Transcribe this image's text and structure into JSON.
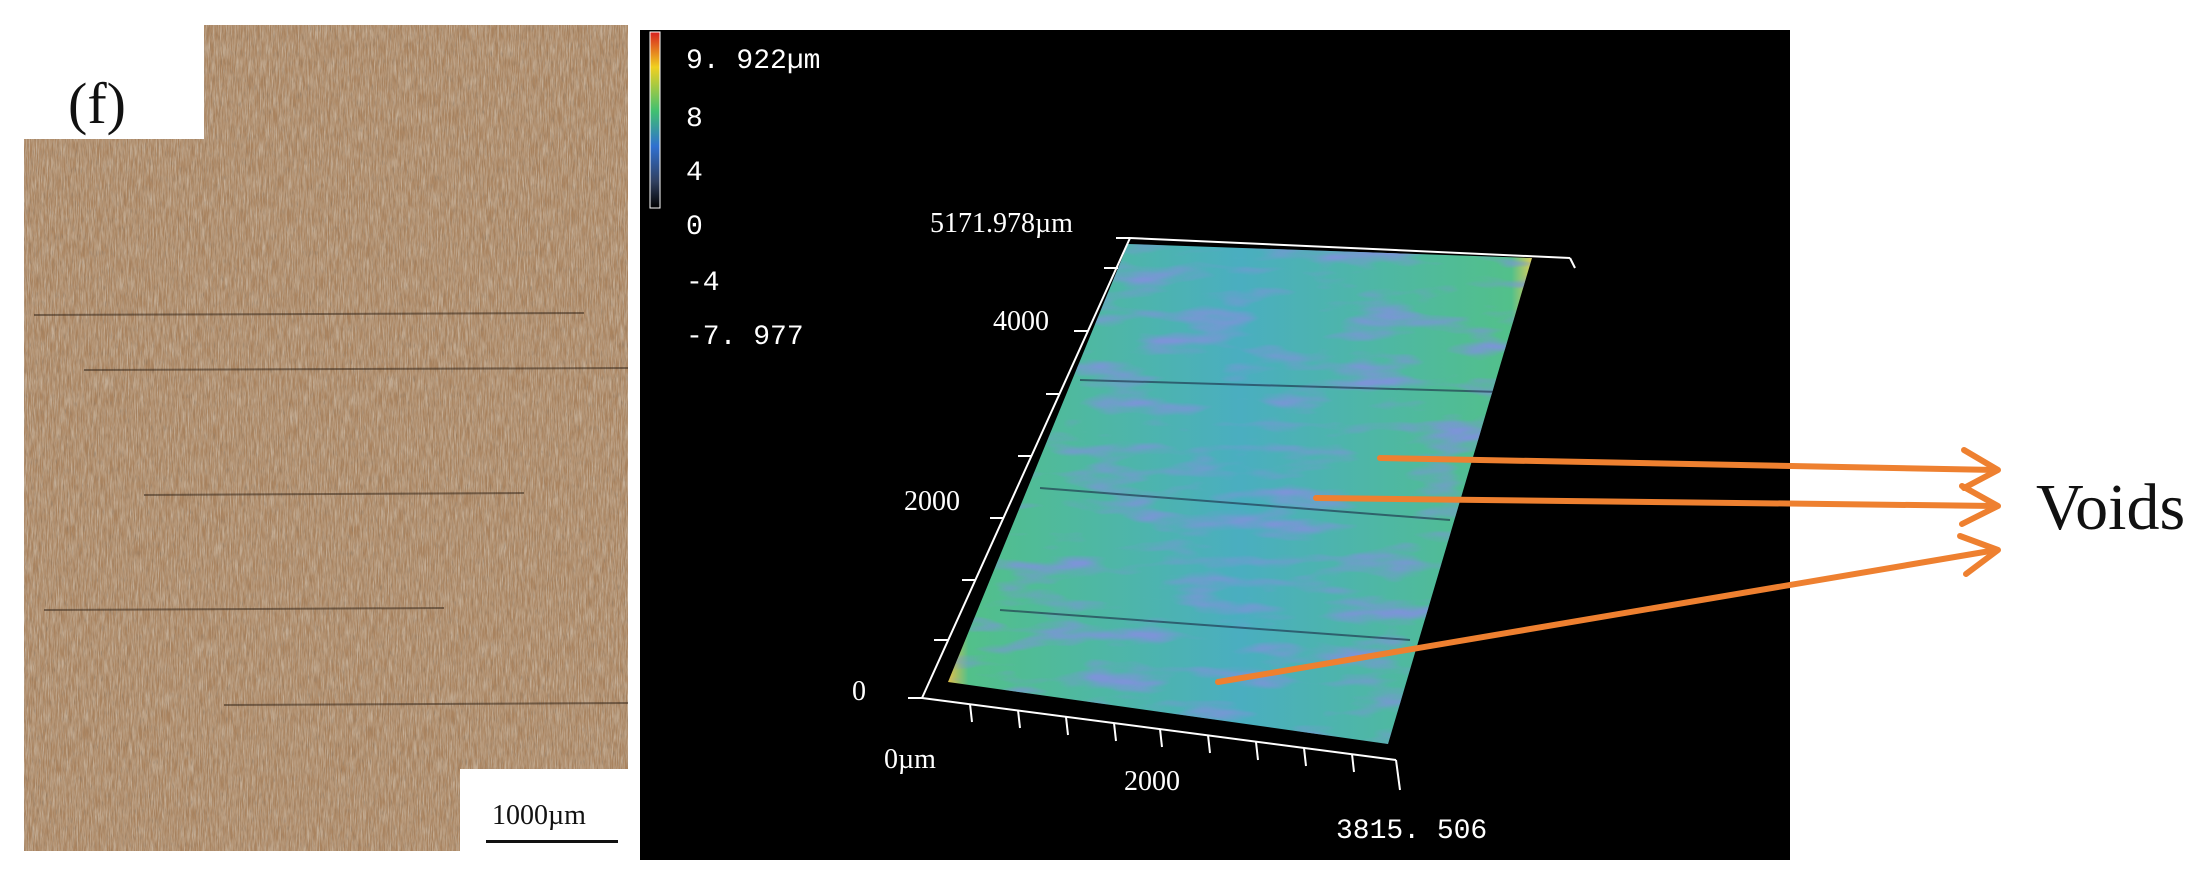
{
  "left_panel": {
    "label": "(f)",
    "scale_bar_text": "1000µm"
  },
  "colorbar": {
    "ticks": [
      "9. 922µm",
      "8",
      "4",
      "0",
      "-4",
      "-7. 977"
    ],
    "colors": [
      "#d82020",
      "#f0d020",
      "#40c070",
      "#3070d0",
      "#304060",
      "#000000"
    ]
  },
  "profile_axes": {
    "y_labels": [
      "5171.978µm",
      "4000",
      "2000",
      "0"
    ],
    "x_labels": [
      "0µm",
      "2000",
      "3815. 506"
    ]
  },
  "annotation": {
    "label": "Voids",
    "arrow_color": "#ee8030"
  }
}
